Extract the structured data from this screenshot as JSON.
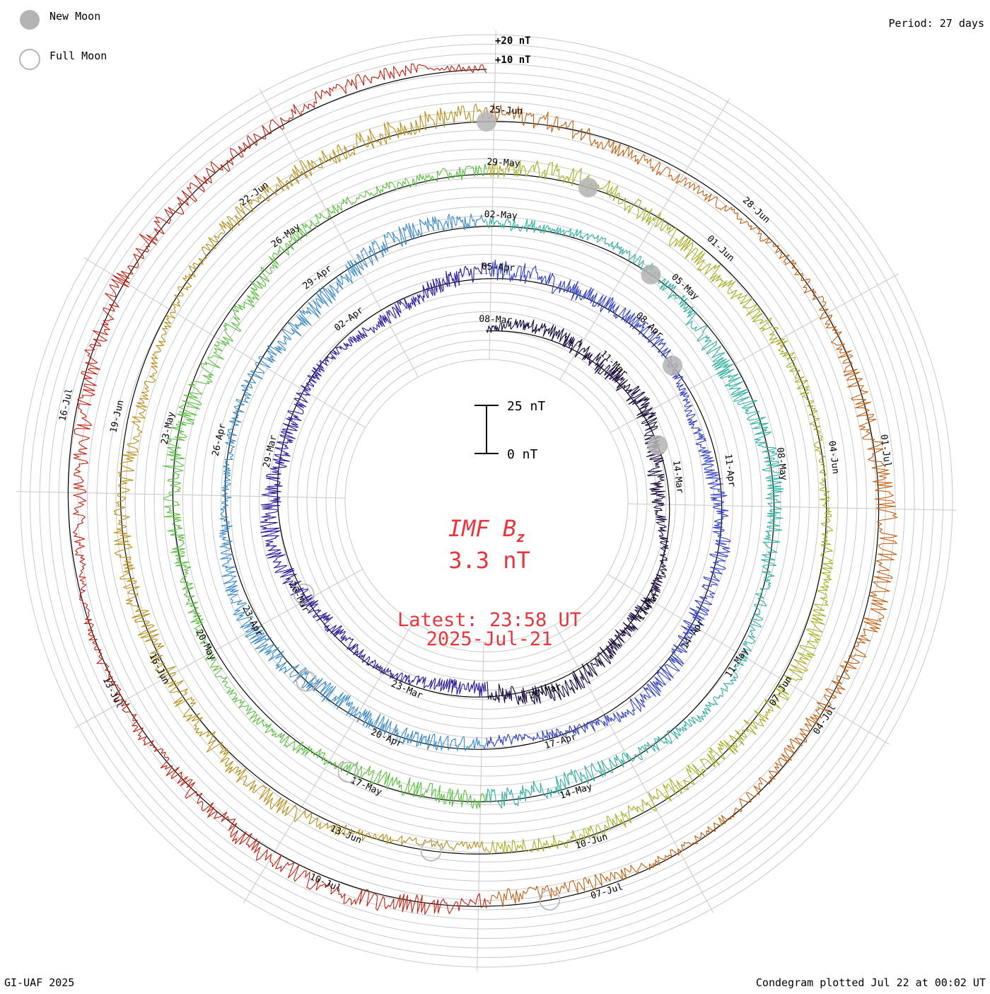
{
  "chart_data": {
    "type": "line",
    "title": "IMF Bz",
    "title_main": "IMF B",
    "title_sub": "z",
    "current_value": "3.3 nT",
    "latest_time": "Latest: 23:58 UT",
    "latest_date": "2025-Jul-21",
    "period": "Period: 27 days",
    "footer_left": "GI-UAF 2025",
    "footer_right": "Condegram plotted Jul 22 at 00:02 UT",
    "legend": {
      "new_moon": "New Moon",
      "full_moon": "Full Moon",
      "new_moon_color": "#b4b4b4",
      "full_moon_color": "#b4b4b4"
    },
    "ring_labels": [
      "+20 nT",
      "+10 nT"
    ],
    "scale_bar": {
      "top_label": "25 nT",
      "bottom_label": "0 nT"
    },
    "series_colors": [
      "#1a0a3c",
      "#2a1a9a",
      "#3040c0",
      "#3a8ac8",
      "#30b0a0",
      "#5ac040",
      "#a8b020",
      "#b89018",
      "#c06010",
      "#c02010"
    ],
    "date_labels": [
      [
        "08-Mar",
        "11-Mar",
        "14-Mar",
        "17-Mar",
        "20-Mar",
        "23-Mar",
        "26-Mar",
        "29-Mar",
        "02-Apr"
      ],
      [
        "05-Apr",
        "08-Apr",
        "11-Apr",
        "14-Apr",
        "17-Apr",
        "20-Apr",
        "23-Apr",
        "26-Apr",
        "29-Apr"
      ],
      [
        "02-May",
        "05-May",
        "08-May",
        "11-May",
        "14-May",
        "17-May",
        "20-May",
        "23-May",
        "26-May"
      ],
      [
        "29-May",
        "01-Jun",
        "04-Jun",
        "07-Jun",
        "10-Jun",
        "13-Jun",
        "16-Jun",
        "19-Jun",
        "22-Jun"
      ],
      [
        "25-Jun",
        "28-Jun",
        "01-Jul",
        "04-Jul",
        "07-Jul",
        "10-Jul",
        "13-Jul",
        "16-Jul"
      ]
    ],
    "x_unit": "days",
    "y_unit": "nT"
  }
}
